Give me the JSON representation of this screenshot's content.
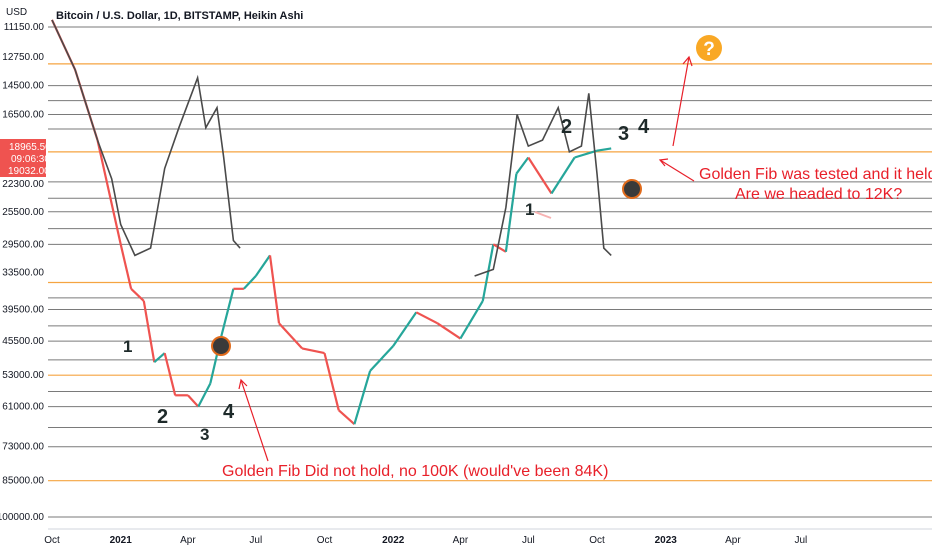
{
  "header": {
    "currency": "USD",
    "title": "Bitcoin / U.S. Dollar, 1D, BITSTAMP, Heikin Ashi"
  },
  "chart_data": {
    "type": "line",
    "scale": "log-inverted",
    "title": "Bitcoin / U.S. Dollar, 1D, BITSTAMP, Heikin Ashi",
    "ylabel": "USD",
    "y_ticks": [
      "11150.00",
      "12750.00",
      "14500.00",
      "16500.00",
      "18965.50",
      "19032.00",
      "22300.00",
      "25500.00",
      "29500.00",
      "33500.00",
      "39500.00",
      "45500.00",
      "53000.00",
      "61000.00",
      "73000.00",
      "85000.00",
      "100000.00"
    ],
    "x_ticks": [
      "Oct",
      "2021",
      "Apr",
      "Jul",
      "Oct",
      "2022",
      "Apr",
      "Jul",
      "Oct",
      "2023",
      "Apr",
      "Jul"
    ],
    "price_labels": {
      "last": "18965.50",
      "countdown": "09:06:30",
      "other": "19032.00"
    },
    "price_lines": {
      "orange": [
        13150,
        19500,
        35000,
        53000,
        85000
      ],
      "gray": [
        11150,
        14500,
        15500,
        16500,
        17600,
        22300,
        24000,
        25500,
        27500,
        29500,
        37500,
        39500,
        42500,
        45500,
        49500,
        57000,
        61000,
        67000,
        73000,
        100000
      ]
    },
    "series": [
      {
        "color": "#26a69a",
        "dates": [
          "2020-10-01",
          "2020-11-01",
          "2020-12-01",
          "2021-01-01",
          "2021-01-15",
          "2021-02-01",
          "2021-02-15",
          "2021-03-01",
          "2021-03-15",
          "2021-04-01",
          "2021-04-15",
          "2021-05-01",
          "2021-05-15",
          "2021-06-01",
          "2021-06-15",
          "2021-07-01",
          "2021-07-20",
          "2021-08-01",
          "2021-09-01",
          "2021-10-01",
          "2021-10-20",
          "2021-11-10",
          "2021-12-01",
          "2022-01-01",
          "2022-02-01",
          "2022-03-01",
          "2022-04-01",
          "2022-05-01",
          "2022-05-15",
          "2022-06-01",
          "2022-06-15",
          "2022-07-01",
          "2022-08-01",
          "2022-09-01",
          "2022-10-01",
          "2022-10-20"
        ],
        "values": [
          10800,
          13500,
          18500,
          29500,
          36000,
          38000,
          50000,
          48000,
          58000,
          58000,
          61000,
          55000,
          45000,
          36000,
          36000,
          34000,
          31000,
          42000,
          47000,
          48000,
          62000,
          66000,
          52000,
          46500,
          40000,
          42000,
          45000,
          38000,
          29500,
          30500,
          21500,
          20000,
          23500,
          20000,
          19400,
          19200
        ]
      },
      {
        "color": "#4a4a4a",
        "dates": [
          "2020-10-01",
          "2020-11-01",
          "2020-12-01",
          "2020-12-20",
          "2021-01-01",
          "2021-01-20",
          "2021-02-10",
          "2021-03-01",
          "2021-03-20",
          "2021-04-14",
          "2021-04-25",
          "2021-05-10",
          "2021-05-19",
          "2021-06-01",
          "2021-06-10",
          "2022-04-20",
          "2022-05-15",
          "2022-06-01",
          "2022-06-16",
          "2022-07-01",
          "2022-07-20",
          "2022-08-10",
          "2022-08-25",
          "2022-09-10",
          "2022-09-20",
          "2022-10-01",
          "2022-10-10",
          "2022-10-20"
        ],
        "values": [
          10800,
          13500,
          18500,
          22000,
          27000,
          31000,
          30000,
          21000,
          17500,
          14000,
          17500,
          16000,
          20000,
          29000,
          30000,
          34000,
          33000,
          25000,
          16500,
          19000,
          18500,
          16000,
          19500,
          19000,
          15000,
          21500,
          30000,
          31000
        ]
      }
    ],
    "wave_labels": {
      "first": [
        "1",
        "2",
        "3",
        "4"
      ],
      "second": [
        "1",
        "2",
        "3",
        "4"
      ]
    },
    "annotations": [
      "Golden Fib was tested and it held!",
      "Are we headed to 12K?",
      "Golden Fib Did not hold, no 100K (would've been 84K)",
      "?"
    ]
  }
}
